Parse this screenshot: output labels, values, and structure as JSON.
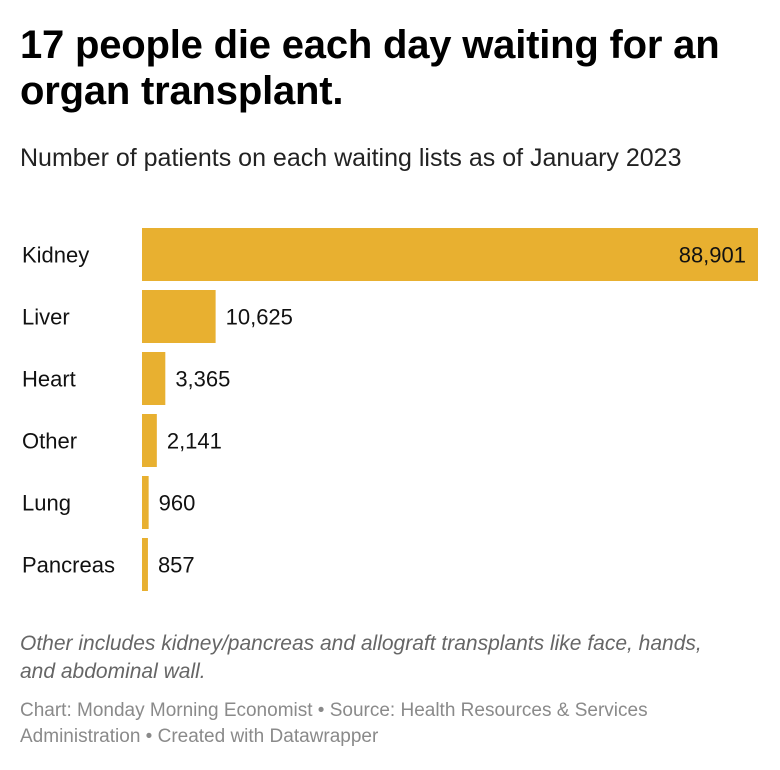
{
  "title": "17 people die each day waiting for an organ transplant.",
  "subtitle": "Number of patients on each waiting lists as of January 2023",
  "notes": "Other includes kidney/pancreas and allograft transplants like face, hands, and abdominal wall.",
  "footer": "Chart: Monday Morning Economist • Source: Health Resources & Services Administration • Created with Datawrapper",
  "colors": {
    "bar": "#e8b030",
    "text": "#111111"
  },
  "chart_data": {
    "type": "bar",
    "orientation": "horizontal",
    "title": "17 people die each day waiting for an organ transplant.",
    "subtitle": "Number of patients on each waiting lists as of January 2023",
    "categories": [
      "Kidney",
      "Liver",
      "Heart",
      "Other",
      "Lung",
      "Pancreas"
    ],
    "values": [
      88901,
      10625,
      3365,
      2141,
      960,
      857
    ],
    "value_labels": [
      "88,901",
      "10,625",
      "3,365",
      "2,141",
      "960",
      "857"
    ],
    "xlim": [
      0,
      88901
    ],
    "grid": false,
    "legend": "none"
  }
}
